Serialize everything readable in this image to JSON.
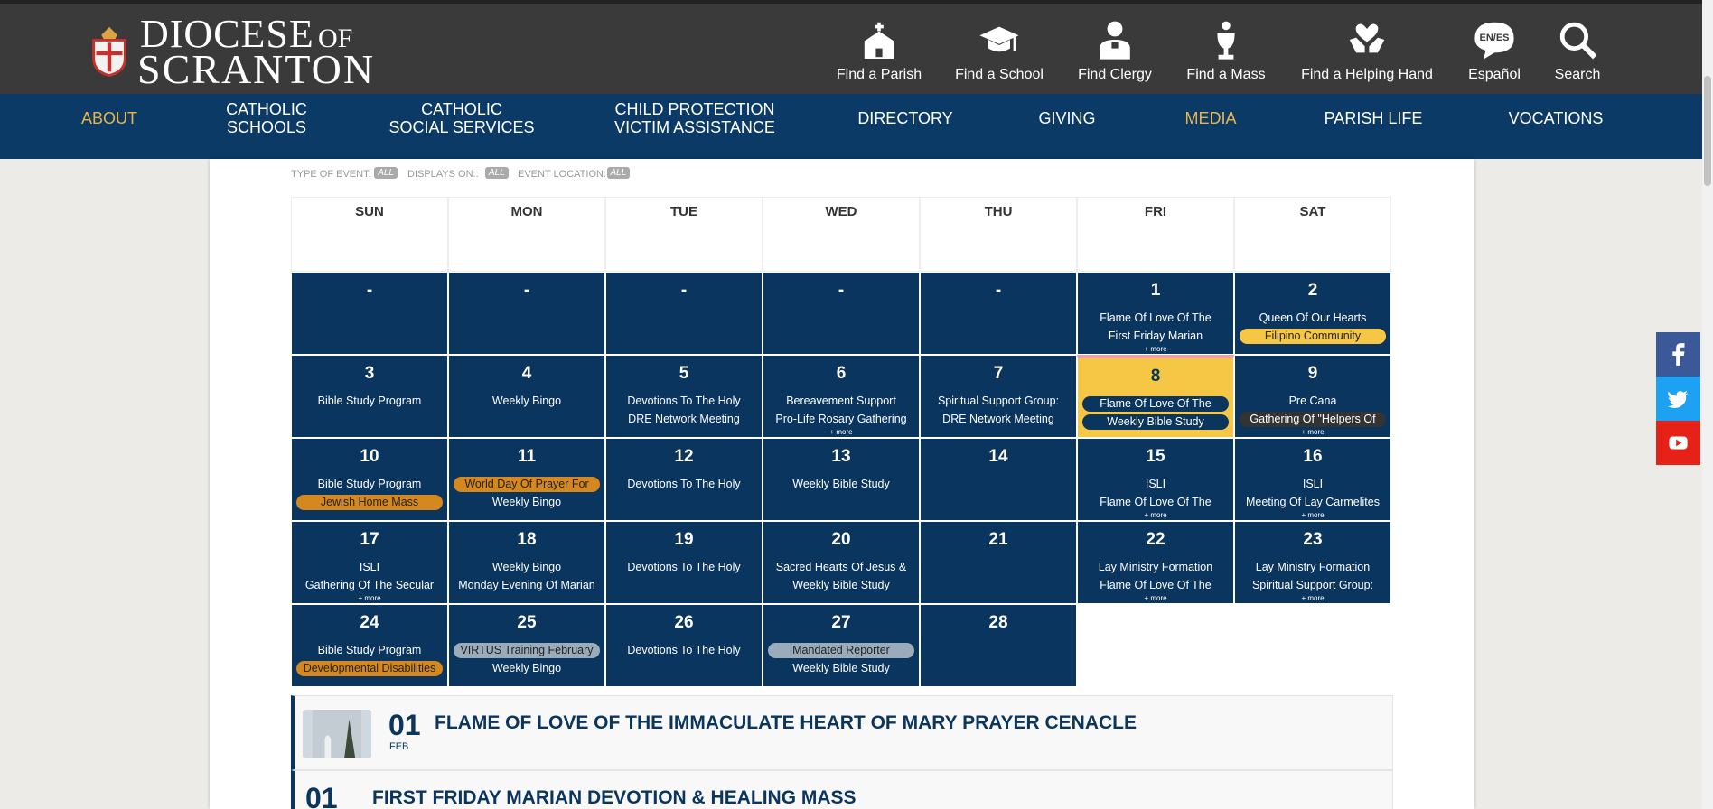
{
  "header": {
    "logo": {
      "line1a": "DIOCESE",
      "line1b": "OF",
      "line2": "SCRANTON"
    },
    "quick_links": [
      "Find a Parish",
      "Find a School",
      "Find Clergy",
      "Find a Mass",
      "Find a Helping Hand",
      "Español",
      "Search"
    ],
    "language_badge": "EN/ES"
  },
  "nav": [
    {
      "lines": [
        "ABOUT"
      ],
      "color": "#e8b54a"
    },
    {
      "lines": [
        "CATHOLIC",
        "SCHOOLS"
      ],
      "color": "#ffffff"
    },
    {
      "lines": [
        "CATHOLIC",
        "SOCIAL SERVICES"
      ],
      "color": "#ffffff"
    },
    {
      "lines": [
        "CHILD PROTECTION",
        "VICTIM ASSISTANCE"
      ],
      "color": "#ffffff"
    },
    {
      "lines": [
        "DIRECTORY"
      ],
      "color": "#ffffff"
    },
    {
      "lines": [
        "GIVING"
      ],
      "color": "#ffffff"
    },
    {
      "lines": [
        "MEDIA"
      ],
      "color": "#e8b54a"
    },
    {
      "lines": [
        "PARISH LIFE"
      ],
      "color": "#ffffff"
    },
    {
      "lines": [
        "VOCATIONS"
      ],
      "color": "#ffffff"
    }
  ],
  "filters": [
    {
      "label": "TYPE OF EVENT:",
      "value": "ALL"
    },
    {
      "label": "DISPLAYS ON::",
      "value": "ALL"
    },
    {
      "label": "EVENT LOCATION:",
      "value": "ALL"
    }
  ],
  "calendar": {
    "weekdays": [
      "SUN",
      "MON",
      "TUE",
      "WED",
      "THU",
      "FRI",
      "SAT"
    ],
    "weeks": [
      [
        {
          "day": "-"
        },
        {
          "day": "-"
        },
        {
          "day": "-"
        },
        {
          "day": "-"
        },
        {
          "day": "-"
        },
        {
          "day": "1",
          "events": [
            {
              "text": "Flame Of Love Of The"
            },
            {
              "text": "First Friday Marian"
            }
          ],
          "more": "+ more"
        },
        {
          "day": "2",
          "events": [
            {
              "text": "Queen Of Our Hearts"
            },
            {
              "text": "Filipino Community",
              "pill": "#f6c744"
            }
          ]
        }
      ],
      [
        {
          "day": "3",
          "events": [
            {
              "text": "Bible Study Program"
            }
          ]
        },
        {
          "day": "4",
          "events": [
            {
              "text": "Weekly Bingo"
            }
          ]
        },
        {
          "day": "5",
          "events": [
            {
              "text": "Devotions To The Holy"
            },
            {
              "text": "DRE Network Meeting"
            }
          ]
        },
        {
          "day": "6",
          "events": [
            {
              "text": "Bereavement Support"
            },
            {
              "text": "Pro-Life Rosary Gathering"
            }
          ],
          "more": "+ more"
        },
        {
          "day": "7",
          "events": [
            {
              "text": "Spiritual Support Group:"
            },
            {
              "text": "DRE Network Meeting"
            }
          ]
        },
        {
          "day": "8",
          "highlight": "#f6c744",
          "events": [
            {
              "text": "Flame Of Love Of The",
              "pill": "#0a355e"
            },
            {
              "text": "Weekly Bible Study",
              "pill": "#0a355e"
            }
          ]
        },
        {
          "day": "9",
          "events": [
            {
              "text": "Pre Cana"
            },
            {
              "text": "Gathering Of \"Helpers Of",
              "pill": "#333333"
            }
          ],
          "more": "+ more"
        }
      ],
      [
        {
          "day": "10",
          "events": [
            {
              "text": "Bible Study Program"
            },
            {
              "text": "Jewish Home Mass",
              "pill": "#d4881f"
            }
          ]
        },
        {
          "day": "11",
          "events": [
            {
              "text": "World Day Of Prayer For",
              "pill": "#d4881f"
            },
            {
              "text": "Weekly Bingo"
            }
          ]
        },
        {
          "day": "12",
          "events": [
            {
              "text": "Devotions To The Holy"
            }
          ]
        },
        {
          "day": "13",
          "events": [
            {
              "text": "Weekly Bible Study"
            }
          ]
        },
        {
          "day": "14"
        },
        {
          "day": "15",
          "events": [
            {
              "text": "ISLI"
            },
            {
              "text": "Flame Of Love Of The"
            }
          ],
          "more": "+ more"
        },
        {
          "day": "16",
          "events": [
            {
              "text": "ISLI"
            },
            {
              "text": "Meeting Of Lay Carmelites"
            }
          ],
          "more": "+ more"
        }
      ],
      [
        {
          "day": "17",
          "events": [
            {
              "text": "ISLI"
            },
            {
              "text": "Gathering Of The Secular"
            }
          ],
          "more": "+ more"
        },
        {
          "day": "18",
          "events": [
            {
              "text": "Weekly Bingo"
            },
            {
              "text": "Monday Evening Of Marian"
            }
          ]
        },
        {
          "day": "19",
          "events": [
            {
              "text": "Devotions To The Holy"
            }
          ]
        },
        {
          "day": "20",
          "events": [
            {
              "text": "Sacred Hearts Of Jesus &"
            },
            {
              "text": "Weekly Bible Study"
            }
          ]
        },
        {
          "day": "21"
        },
        {
          "day": "22",
          "events": [
            {
              "text": "Lay Ministry Formation"
            },
            {
              "text": "Flame Of Love Of The"
            }
          ],
          "more": "+ more"
        },
        {
          "day": "23",
          "events": [
            {
              "text": "Lay Ministry Formation"
            },
            {
              "text": "Spiritual Support Group:"
            }
          ],
          "more": "+ more"
        }
      ],
      [
        {
          "day": "24",
          "events": [
            {
              "text": "Bible Study Program"
            },
            {
              "text": "Developmental Disabilities",
              "pill": "#d4881f"
            }
          ]
        },
        {
          "day": "25",
          "events": [
            {
              "text": "VIRTUS Training February",
              "pill": "#9aabbb"
            },
            {
              "text": "Weekly Bingo"
            }
          ]
        },
        {
          "day": "26",
          "events": [
            {
              "text": "Devotions To The Holy"
            }
          ]
        },
        {
          "day": "27",
          "events": [
            {
              "text": "Mandated Reporter",
              "pill": "#9aabbb"
            },
            {
              "text": "Weekly Bible Study"
            }
          ]
        },
        {
          "day": "28"
        }
      ]
    ]
  },
  "event_list": [
    {
      "date": "01",
      "month": "FEB",
      "title": "FLAME OF LOVE OF THE IMMACULATE HEART OF MARY PRAYER CENACLE"
    },
    {
      "date": "01",
      "title": "FIRST FRIDAY MARIAN DEVOTION & HEALING MASS"
    }
  ]
}
